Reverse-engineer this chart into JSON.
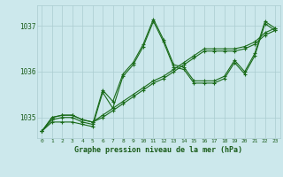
{
  "bg_color": "#cce8ec",
  "grid_color": "#aaccd0",
  "line_color": "#1a6b1a",
  "text_color": "#1a5c1a",
  "xlabel": "Graphe pression niveau de la mer (hPa)",
  "ylabel_ticks": [
    1035,
    1036,
    1037
  ],
  "xlim": [
    -0.5,
    23.5
  ],
  "ylim": [
    1034.55,
    1037.45
  ],
  "hours": [
    0,
    1,
    2,
    3,
    4,
    5,
    6,
    7,
    8,
    9,
    10,
    11,
    12,
    13,
    14,
    15,
    16,
    17,
    18,
    19,
    20,
    21,
    22,
    23
  ],
  "series": [
    [
      1034.7,
      1034.9,
      1034.9,
      1034.9,
      1034.85,
      1034.8,
      1035.55,
      1035.2,
      1035.9,
      1036.15,
      1036.55,
      1037.1,
      1036.65,
      1036.1,
      1036.05,
      1035.75,
      1035.75,
      1035.75,
      1035.85,
      1036.2,
      1035.95,
      1036.35,
      1037.05,
      1036.9
    ],
    [
      1034.7,
      1034.95,
      1035.0,
      1035.0,
      1034.9,
      1034.85,
      1035.6,
      1035.35,
      1035.95,
      1036.2,
      1036.6,
      1037.15,
      1036.7,
      1036.15,
      1036.1,
      1035.8,
      1035.8,
      1035.8,
      1035.9,
      1036.25,
      1036.0,
      1036.4,
      1037.1,
      1036.95
    ],
    [
      1034.7,
      1035.0,
      1035.05,
      1035.05,
      1034.95,
      1034.9,
      1035.0,
      1035.15,
      1035.3,
      1035.45,
      1035.6,
      1035.75,
      1035.85,
      1036.0,
      1036.15,
      1036.3,
      1036.45,
      1036.45,
      1036.45,
      1036.45,
      1036.5,
      1036.6,
      1036.8,
      1036.9
    ],
    [
      1034.7,
      1035.0,
      1035.05,
      1035.05,
      1034.95,
      1034.9,
      1035.05,
      1035.2,
      1035.35,
      1035.5,
      1035.65,
      1035.8,
      1035.9,
      1036.05,
      1036.2,
      1036.35,
      1036.5,
      1036.5,
      1036.5,
      1036.5,
      1036.55,
      1036.65,
      1036.85,
      1036.95
    ]
  ],
  "figsize": [
    3.2,
    2.0
  ],
  "dpi": 100
}
